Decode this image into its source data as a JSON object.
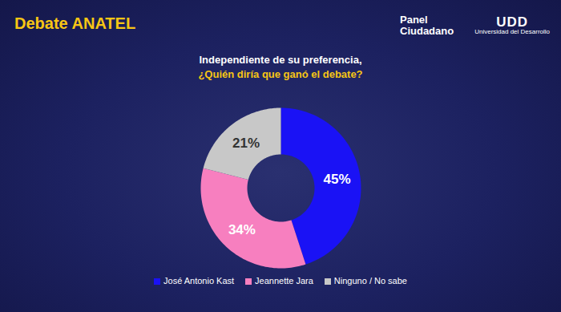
{
  "header": {
    "title": "Debate ANATEL",
    "logos": [
      {
        "lines": [
          "Panel",
          "Ciudadano"
        ]
      },
      {
        "lines": [
          "UDD",
          "Universidad del Desarrollo"
        ]
      }
    ]
  },
  "chart_data": {
    "type": "pie",
    "title": "Independiente de su preferencia,",
    "subtitle": "¿Quién diría que ganó el debate?",
    "categories": [
      "José Antonio Kast",
      "Jeannette Jara",
      "Ninguno / No sabe"
    ],
    "values": [
      45,
      34,
      21
    ],
    "value_labels": [
      "45%",
      "34%",
      "21%"
    ],
    "colors": [
      "#1a12f5",
      "#f77fbf",
      "#c8c8c8"
    ],
    "data_labels": true,
    "legend": "bottom"
  }
}
